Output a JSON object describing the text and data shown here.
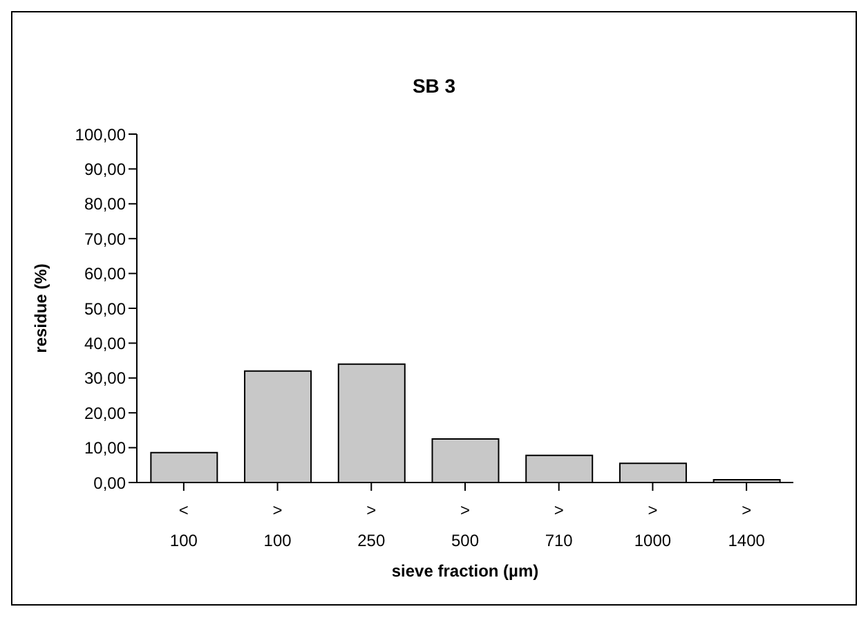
{
  "chart_data": {
    "type": "bar",
    "title": "SB 3",
    "xlabel": "sieve fraction (µm)",
    "ylabel": "residue (%)",
    "categories": [
      "< 100",
      "> 100",
      "> 250",
      "> 500",
      "> 710",
      "> 1000",
      "> 1400"
    ],
    "values": [
      8.6,
      32,
      34,
      12.5,
      7.8,
      5.5,
      0.8
    ],
    "color": "#c8c8c8",
    "ylim": [
      0,
      100
    ],
    "yticks": [
      {
        "value": 0,
        "label": "0,00"
      },
      {
        "value": 10,
        "label": "10,00"
      },
      {
        "value": 20,
        "label": "20,00"
      },
      {
        "value": 30,
        "label": "30,00"
      },
      {
        "value": 40,
        "label": "40,00"
      },
      {
        "value": 50,
        "label": "50,00"
      },
      {
        "value": 60,
        "label": "60,00"
      },
      {
        "value": 70,
        "label": "70,00"
      },
      {
        "value": 80,
        "label": "80,00"
      },
      {
        "value": 90,
        "label": "90,00"
      },
      {
        "value": 100,
        "label": "100,00"
      }
    ]
  }
}
